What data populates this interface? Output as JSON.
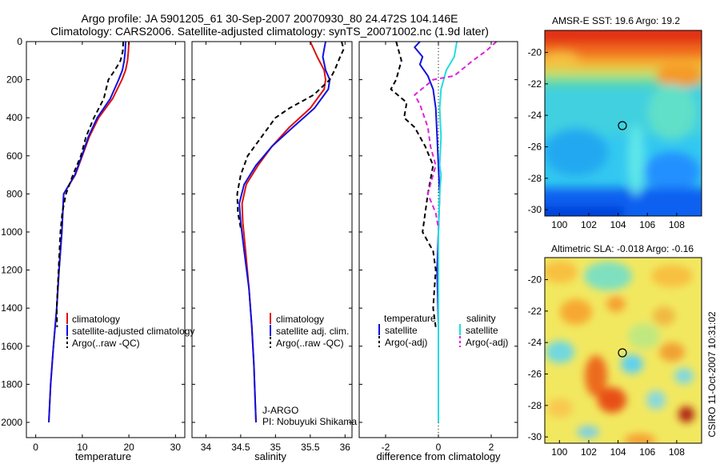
{
  "header": {
    "title_line1": "Argo profile: JA 5901205_61 30-Sep-2007 20070930_80 24.472S 104.146E",
    "title_line2": "Climatology: CARS2006. Satellite-adjusted climatology: synTS_20071002.nc (1.9d later)"
  },
  "footer_stamp": "CSIRO 11-Oct-2007 10:31:02",
  "colors": {
    "red": "#dd1111",
    "blue": "#1111dd",
    "black": "#000000",
    "cyan": "#22dddd",
    "magenta": "#dd22dd"
  },
  "chart_data": [
    {
      "type": "line",
      "xlabel": "temperature",
      "ylabel": "",
      "xlim": [
        -2,
        32
      ],
      "ylim": [
        2080,
        0
      ],
      "xticks": [
        0,
        10,
        20,
        30
      ],
      "yticks": [
        0,
        200,
        400,
        600,
        800,
        1000,
        1200,
        1400,
        1600,
        1800,
        2000
      ],
      "legend": [
        "climatology",
        "satellite-adjusted climatology",
        "Argo(..raw -QC)"
      ],
      "series": [
        {
          "name": "climatology",
          "color": "red",
          "style": "solid",
          "points": [
            [
              20.0,
              0
            ],
            [
              19.9,
              50
            ],
            [
              19.7,
              100
            ],
            [
              19.3,
              150
            ],
            [
              18.5,
              200
            ],
            [
              16.5,
              300
            ],
            [
              13.5,
              400
            ],
            [
              11.5,
              500
            ],
            [
              10.0,
              600
            ],
            [
              8.5,
              700
            ],
            [
              6.0,
              800
            ],
            [
              5.6,
              1000
            ],
            [
              5.0,
              1200
            ],
            [
              4.5,
              1400
            ],
            [
              3.8,
              1600
            ],
            [
              3.2,
              1800
            ],
            [
              2.8,
              2000
            ]
          ]
        },
        {
          "name": "satellite-adjusted climatology",
          "color": "blue",
          "style": "solid",
          "points": [
            [
              19.3,
              0
            ],
            [
              19.2,
              50
            ],
            [
              19.0,
              100
            ],
            [
              18.6,
              150
            ],
            [
              17.8,
              200
            ],
            [
              16.0,
              300
            ],
            [
              13.2,
              400
            ],
            [
              11.3,
              500
            ],
            [
              9.9,
              600
            ],
            [
              8.4,
              700
            ],
            [
              6.0,
              800
            ],
            [
              5.6,
              1000
            ],
            [
              5.0,
              1200
            ],
            [
              4.5,
              1400
            ],
            [
              3.8,
              1600
            ],
            [
              3.2,
              1800
            ],
            [
              2.8,
              2000
            ]
          ]
        },
        {
          "name": "Argo(..raw -QC)",
          "color": "black",
          "style": "dashed",
          "points": [
            [
              18.8,
              0
            ],
            [
              18.7,
              50
            ],
            [
              18.2,
              100
            ],
            [
              17.0,
              150
            ],
            [
              15.6,
              200
            ],
            [
              14.6,
              300
            ],
            [
              12.5,
              400
            ],
            [
              10.8,
              500
            ],
            [
              9.7,
              600
            ],
            [
              8.0,
              700
            ],
            [
              6.5,
              800
            ],
            [
              5.7,
              900
            ],
            [
              5.3,
              1000
            ],
            [
              5.1,
              1100
            ],
            [
              4.9,
              1200
            ],
            [
              4.7,
              1300
            ],
            [
              4.5,
              1400
            ],
            [
              4.6,
              1500
            ]
          ]
        }
      ]
    },
    {
      "type": "line",
      "xlabel": "salinity",
      "ylabel": "",
      "xlim": [
        33.8,
        36.1
      ],
      "ylim": [
        2080,
        0
      ],
      "xticks": [
        34,
        34.5,
        35,
        35.5,
        36
      ],
      "legend": [
        "climatology",
        "satellite adj. clim.",
        "Argo(..raw -QC)"
      ],
      "annotation": [
        "J-ARGO",
        "PI: Nobuyuki Shikama"
      ],
      "series": [
        {
          "name": "climatology",
          "color": "red",
          "style": "solid",
          "points": [
            [
              35.5,
              0
            ],
            [
              35.55,
              40
            ],
            [
              35.6,
              80
            ],
            [
              35.7,
              150
            ],
            [
              35.72,
              200
            ],
            [
              35.7,
              250
            ],
            [
              35.5,
              350
            ],
            [
              35.2,
              450
            ],
            [
              34.95,
              550
            ],
            [
              34.75,
              650
            ],
            [
              34.58,
              750
            ],
            [
              34.52,
              850
            ],
            [
              34.53,
              950
            ],
            [
              34.57,
              1100
            ],
            [
              34.62,
              1300
            ],
            [
              34.66,
              1500
            ],
            [
              34.69,
              1700
            ],
            [
              34.71,
              1900
            ],
            [
              34.72,
              2000
            ]
          ]
        },
        {
          "name": "satellite adj. clim.",
          "color": "blue",
          "style": "solid",
          "points": [
            [
              35.72,
              0
            ],
            [
              35.7,
              40
            ],
            [
              35.68,
              80
            ],
            [
              35.72,
              150
            ],
            [
              35.78,
              200
            ],
            [
              35.76,
              250
            ],
            [
              35.56,
              350
            ],
            [
              35.25,
              450
            ],
            [
              34.95,
              550
            ],
            [
              34.72,
              650
            ],
            [
              34.55,
              750
            ],
            [
              34.48,
              850
            ],
            [
              34.5,
              950
            ],
            [
              34.55,
              1100
            ],
            [
              34.62,
              1300
            ],
            [
              34.66,
              1500
            ],
            [
              34.69,
              1700
            ],
            [
              34.71,
              1900
            ],
            [
              34.72,
              2000
            ]
          ]
        },
        {
          "name": "Argo(..raw -QC)",
          "color": "black",
          "style": "dashed",
          "points": [
            [
              35.95,
              0
            ],
            [
              35.98,
              40
            ],
            [
              35.93,
              80
            ],
            [
              35.85,
              150
            ],
            [
              35.78,
              200
            ],
            [
              35.55,
              280
            ],
            [
              35.2,
              350
            ],
            [
              35.0,
              400
            ],
            [
              34.8,
              500
            ],
            [
              34.6,
              600
            ],
            [
              34.5,
              700
            ],
            [
              34.45,
              800
            ],
            [
              34.46,
              900
            ],
            [
              34.5,
              980
            ]
          ]
        }
      ]
    },
    {
      "type": "line",
      "xlabel": "difference from climatology",
      "ylabel": "",
      "xlim": [
        -3,
        3
      ],
      "ylim": [
        2080,
        0
      ],
      "xticks": [
        -2,
        0,
        2
      ],
      "legend_left_header": "temperature",
      "legend_right_header": "salinity",
      "legend_left": [
        "satellite",
        "Argo(-adj)"
      ],
      "legend_right": [
        "satellite",
        "Argo(-adj)"
      ],
      "series": [
        {
          "name": "temperature satellite",
          "color": "blue",
          "style": "solid",
          "points": [
            [
              -0.7,
              0
            ],
            [
              -0.9,
              30
            ],
            [
              -0.6,
              80
            ],
            [
              -0.7,
              120
            ],
            [
              -0.4,
              180
            ],
            [
              -0.2,
              250
            ],
            [
              -0.1,
              350
            ],
            [
              -0.05,
              500
            ],
            [
              0,
              650
            ],
            [
              0.05,
              800
            ],
            [
              0,
              1000
            ],
            [
              -0.05,
              1200
            ],
            [
              0,
              1500
            ],
            [
              0,
              2000
            ]
          ]
        },
        {
          "name": "temperature Argo(-adj)",
          "color": "black",
          "style": "dashed",
          "points": [
            [
              -1.6,
              0
            ],
            [
              -1.5,
              50
            ],
            [
              -1.4,
              100
            ],
            [
              -1.6,
              200
            ],
            [
              -1.8,
              250
            ],
            [
              -1.2,
              320
            ],
            [
              -1.3,
              400
            ],
            [
              -0.9,
              450
            ],
            [
              -0.5,
              550
            ],
            [
              -0.2,
              650
            ],
            [
              -0.4,
              800
            ],
            [
              -0.5,
              900
            ],
            [
              -0.6,
              1000
            ],
            [
              -0.2,
              1100
            ],
            [
              -0.1,
              1200
            ],
            [
              -0.15,
              1300
            ],
            [
              -0.2,
              1400
            ],
            [
              -0.1,
              1500
            ]
          ]
        },
        {
          "name": "salinity satellite",
          "color": "cyan",
          "style": "solid",
          "points": [
            [
              0.7,
              0
            ],
            [
              0.6,
              80
            ],
            [
              0.3,
              150
            ],
            [
              0.1,
              250
            ],
            [
              0.05,
              350
            ],
            [
              0.1,
              500
            ],
            [
              0.05,
              650
            ],
            [
              0.1,
              700
            ],
            [
              0.05,
              800
            ],
            [
              0,
              1000
            ],
            [
              0,
              1500
            ],
            [
              0,
              2000
            ]
          ]
        },
        {
          "name": "salinity Argo(-adj)",
          "color": "magenta",
          "style": "dashed",
          "points": [
            [
              2.2,
              0
            ],
            [
              1.8,
              50
            ],
            [
              1.3,
              100
            ],
            [
              0.6,
              180
            ],
            [
              -0.2,
              200
            ],
            [
              -0.9,
              280
            ],
            [
              -0.7,
              330
            ],
            [
              -0.4,
              450
            ],
            [
              -0.3,
              550
            ],
            [
              -0.1,
              650
            ],
            [
              -0.3,
              750
            ],
            [
              -0.4,
              800
            ],
            [
              -0.1,
              900
            ],
            [
              0,
              980
            ]
          ]
        }
      ]
    },
    {
      "type": "heatmap",
      "title": "AMSR-E SST: 19.6 Argo: 19.2",
      "xlim": [
        99,
        109.7
      ],
      "ylim": [
        -30.4,
        -18.6
      ],
      "xticks": [
        100,
        102,
        104,
        106,
        108
      ],
      "yticks": [
        -20,
        -22,
        -24,
        -26,
        -28,
        -30
      ],
      "marker": {
        "lon": 104.146,
        "lat": -24.472
      }
    },
    {
      "type": "heatmap",
      "title": "Altimetric SLA: -0.018 Argo: -0.16",
      "xlim": [
        99,
        109.7
      ],
      "ylim": [
        -30.4,
        -18.6
      ],
      "xticks": [
        100,
        102,
        104,
        106,
        108
      ],
      "yticks": [
        -20,
        -22,
        -24,
        -26,
        -28,
        -30
      ],
      "marker": {
        "lon": 104.146,
        "lat": -24.472
      }
    }
  ]
}
